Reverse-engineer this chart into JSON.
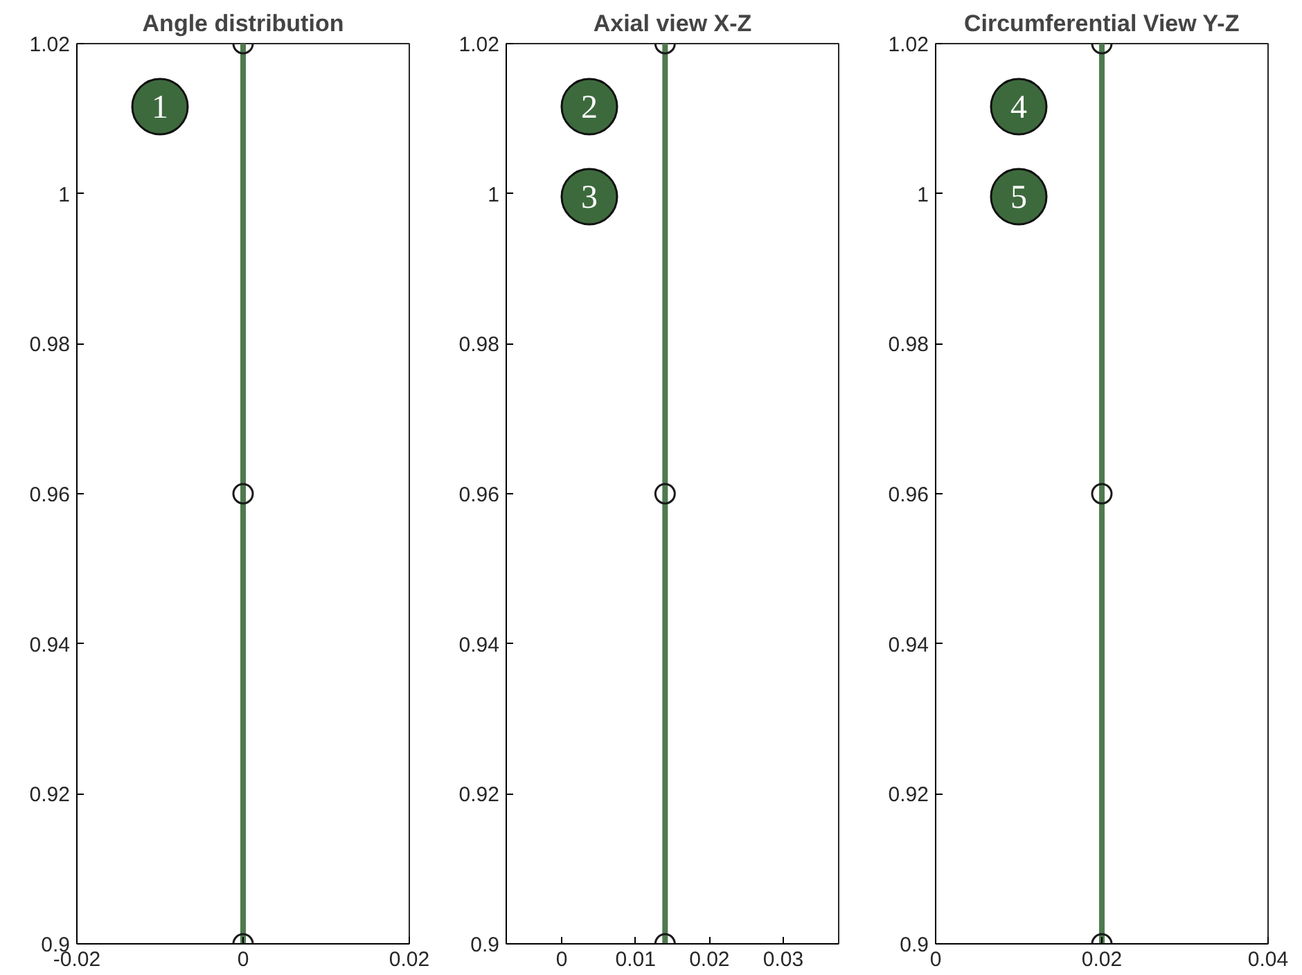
{
  "chart_data": [
    {
      "type": "line",
      "title": "Angle distribution",
      "xlim": [
        -0.02,
        0.02
      ],
      "xticks": [
        -0.02,
        0,
        0.02
      ],
      "ylim": [
        0.9,
        1.02
      ],
      "yticks": [
        0.9,
        0.92,
        0.94,
        0.96,
        0.98,
        1,
        1.02
      ],
      "marker": "circle",
      "grid": false,
      "annotations": [
        "1"
      ],
      "series": [
        {
          "color": "#4f7a4f",
          "x": [
            0,
            0,
            0
          ],
          "values": [
            0.9,
            0.96,
            1.02
          ]
        }
      ]
    },
    {
      "type": "line",
      "title": "Axial view X-Z",
      "xlim": [
        -0.0075,
        0.0375
      ],
      "xticks": [
        0,
        0.01,
        0.02,
        0.03
      ],
      "ylim": [
        0.9,
        1.02
      ],
      "yticks": [
        0.9,
        0.92,
        0.94,
        0.96,
        0.98,
        1,
        1.02
      ],
      "marker": "circle",
      "grid": false,
      "annotations": [
        "2",
        "3"
      ],
      "series": [
        {
          "color": "#4f7a4f",
          "x": [
            0.014,
            0.014,
            0.014
          ],
          "values": [
            0.9,
            0.96,
            1.02
          ]
        }
      ]
    },
    {
      "type": "line",
      "title": "Circumferential View Y-Z",
      "xlim": [
        0,
        0.04
      ],
      "xticks": [
        0,
        0.02,
        0.04
      ],
      "ylim": [
        0.9,
        1.02
      ],
      "yticks": [
        0.9,
        0.92,
        0.94,
        0.96,
        0.98,
        1,
        1.02
      ],
      "marker": "circle",
      "grid": false,
      "annotations": [
        "4",
        "5"
      ],
      "series": [
        {
          "color": "#4f7a4f",
          "x": [
            0.02,
            0.02,
            0.02
          ],
          "values": [
            0.9,
            0.96,
            1.02
          ]
        }
      ]
    }
  ]
}
